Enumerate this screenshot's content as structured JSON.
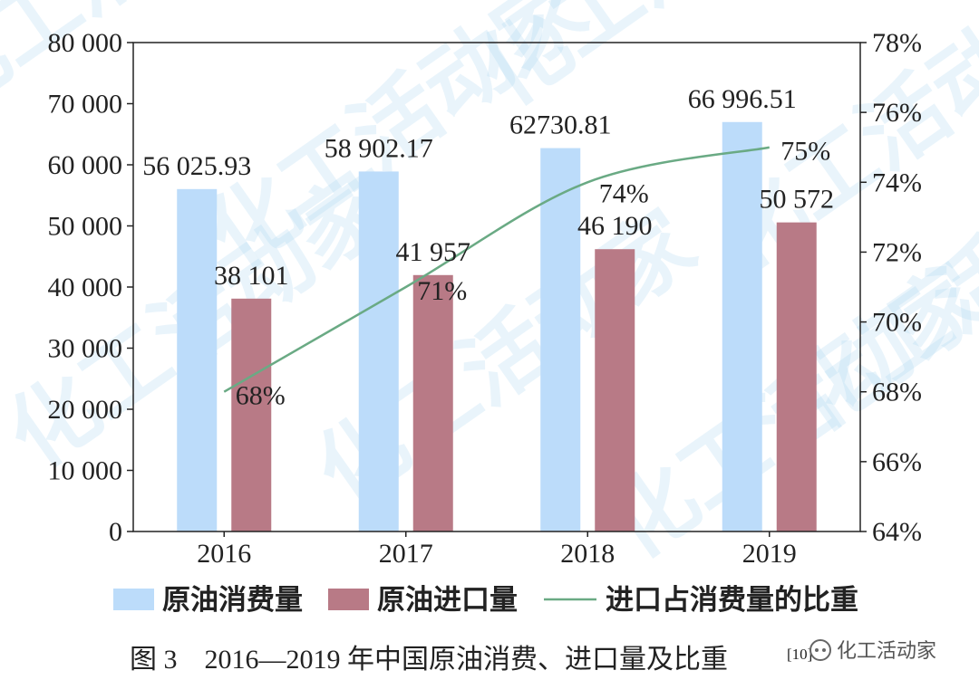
{
  "chart_data": {
    "type": "bar",
    "categories": [
      "2016",
      "2017",
      "2018",
      "2019"
    ],
    "series": [
      {
        "name": "原油消费量",
        "kind": "bar",
        "axis": "left",
        "color": "#bcdcfa",
        "values": [
          56025.93,
          58902.17,
          62730.81,
          66996.51
        ],
        "labels": [
          "56 025.93",
          "58 902.17",
          "62730.81",
          "66 996.51"
        ]
      },
      {
        "name": "原油进口量",
        "kind": "bar",
        "axis": "left",
        "color": "#b87a86",
        "values": [
          38101,
          41957,
          46190,
          50572
        ],
        "labels": [
          "38 101",
          "41 957",
          "46 190",
          "50 572"
        ]
      },
      {
        "name": "进口占消费量的比重",
        "kind": "line",
        "axis": "right",
        "color": "#6aaa84",
        "values": [
          68,
          71,
          74,
          75
        ],
        "labels": [
          "68%",
          "71%",
          "74%",
          "75%"
        ]
      }
    ],
    "y_left": {
      "min": 0,
      "max": 80000,
      "ticks": [
        0,
        10000,
        20000,
        30000,
        40000,
        50000,
        60000,
        70000,
        80000
      ],
      "tick_labels": [
        "0",
        "10 000",
        "20 000",
        "30 000",
        "40 000",
        "50 000",
        "60 000",
        "70 000",
        "80 000"
      ]
    },
    "y_right": {
      "min": 64,
      "max": 78,
      "ticks": [
        64,
        66,
        68,
        70,
        72,
        74,
        76,
        78
      ],
      "tick_labels": [
        "64%",
        "66%",
        "68%",
        "70%",
        "72%",
        "74%",
        "76%",
        "78%"
      ]
    },
    "legend_position": "bottom",
    "grid": false
  },
  "caption": "图 3　2016—2019 年中国原油消费、进口量及比重",
  "caption_ref": "[10]",
  "watermark": {
    "text": "化工活动家",
    "logo_text": "化工活动家"
  }
}
